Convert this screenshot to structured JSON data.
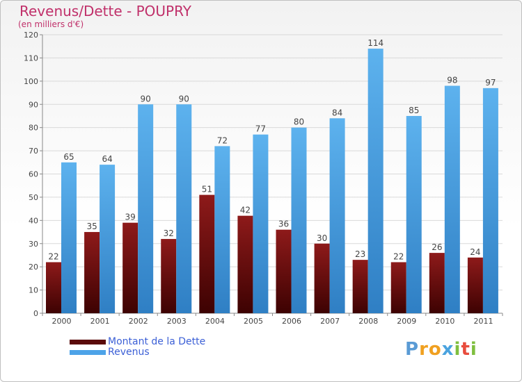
{
  "chart_data": {
    "type": "bar",
    "title": "Revenus/Dette - POUPRY",
    "subtitle": "(en milliers d'€)",
    "categories": [
      "2000",
      "2001",
      "2002",
      "2003",
      "2004",
      "2005",
      "2006",
      "2007",
      "2008",
      "2009",
      "2010",
      "2011"
    ],
    "series": [
      {
        "name": "Montant de la Dette",
        "color": "#7a0e0e",
        "values": [
          22,
          35,
          39,
          32,
          51,
          42,
          36,
          30,
          23,
          22,
          26,
          24
        ]
      },
      {
        "name": "Revenus",
        "color": "#4da3e8",
        "values": [
          65,
          64,
          90,
          90,
          72,
          77,
          80,
          84,
          114,
          85,
          98,
          97
        ]
      }
    ],
    "ylim": [
      0,
      120
    ],
    "yticks": [
      0,
      10,
      20,
      30,
      40,
      50,
      60,
      70,
      80,
      90,
      100,
      110,
      120
    ],
    "grid": true,
    "legend_position": "bottom-left"
  },
  "logo": {
    "text": "Proxiti"
  }
}
